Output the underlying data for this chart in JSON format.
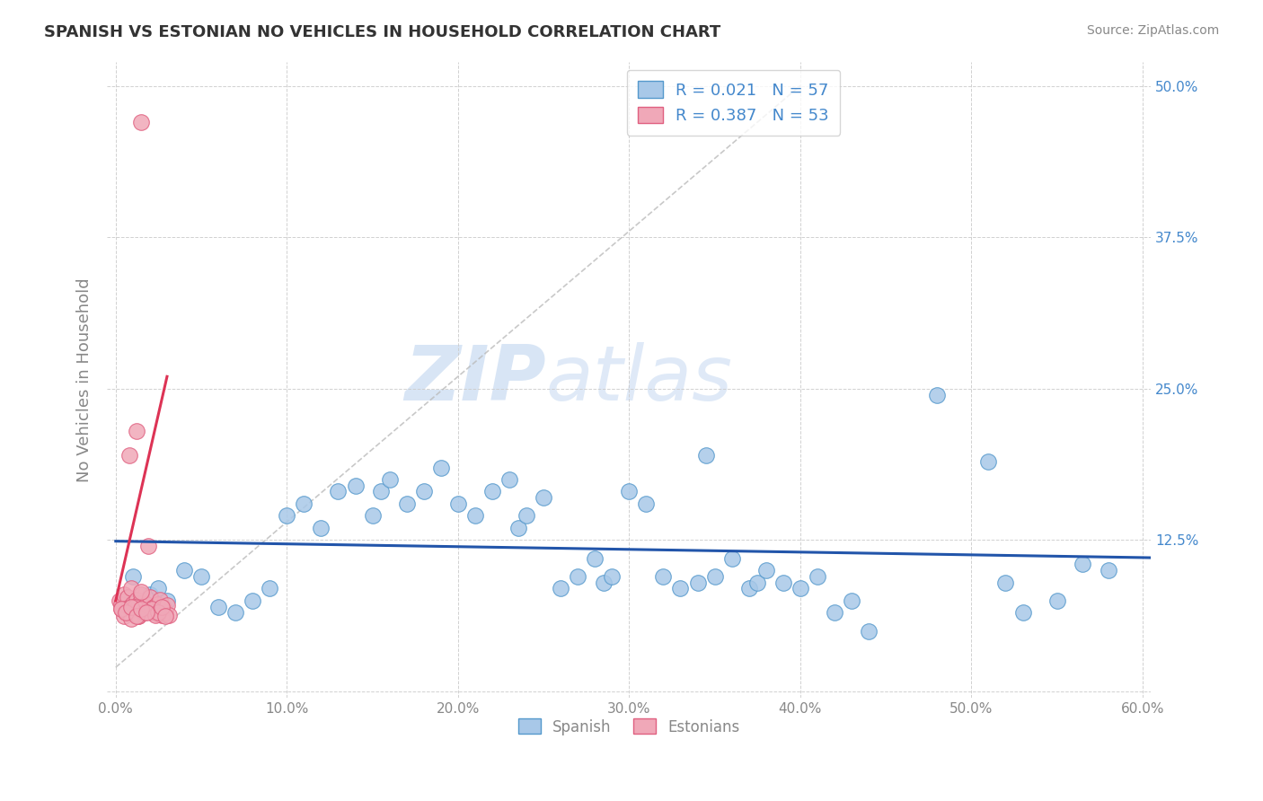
{
  "title": "SPANISH VS ESTONIAN NO VEHICLES IN HOUSEHOLD CORRELATION CHART",
  "source": "Source: ZipAtlas.com",
  "ylabel": "No Vehicles in Household",
  "xlim": [
    -0.005,
    0.605
  ],
  "ylim": [
    -0.005,
    0.52
  ],
  "xticks": [
    0.0,
    0.1,
    0.2,
    0.3,
    0.4,
    0.5,
    0.6
  ],
  "xticklabels": [
    "0.0%",
    "10.0%",
    "20.0%",
    "30.0%",
    "40.0%",
    "50.0%",
    "60.0%"
  ],
  "yticks": [
    0.0,
    0.125,
    0.25,
    0.375,
    0.5
  ],
  "yticklabels_right": [
    "",
    "12.5%",
    "25.0%",
    "37.5%",
    "50.0%"
  ],
  "blue_color": "#a8c8e8",
  "blue_edge": "#5599cc",
  "pink_color": "#f0a8b8",
  "pink_edge": "#e06080",
  "blue_line_color": "#2255aa",
  "pink_line_color": "#dd3355",
  "dashed_line_color": "#cccccc",
  "R_blue": 0.021,
  "N_blue": 57,
  "R_pink": 0.387,
  "N_pink": 53,
  "watermark_zip": "ZIP",
  "watermark_atlas": "atlas",
  "background_color": "#ffffff",
  "legend_labels": [
    "Spanish",
    "Estonians"
  ],
  "tick_label_color": "#4488cc",
  "spanish_x": [
    0.01,
    0.02,
    0.025,
    0.03,
    0.04,
    0.05,
    0.06,
    0.07,
    0.08,
    0.09,
    0.1,
    0.11,
    0.12,
    0.13,
    0.14,
    0.15,
    0.155,
    0.16,
    0.17,
    0.18,
    0.19,
    0.2,
    0.21,
    0.22,
    0.23,
    0.235,
    0.24,
    0.25,
    0.26,
    0.27,
    0.28,
    0.285,
    0.29,
    0.3,
    0.31,
    0.32,
    0.33,
    0.34,
    0.345,
    0.35,
    0.36,
    0.37,
    0.375,
    0.38,
    0.39,
    0.4,
    0.41,
    0.42,
    0.43,
    0.44,
    0.48,
    0.51,
    0.52,
    0.53,
    0.55,
    0.565,
    0.58
  ],
  "spanish_y": [
    0.095,
    0.08,
    0.085,
    0.075,
    0.1,
    0.095,
    0.07,
    0.065,
    0.075,
    0.085,
    0.145,
    0.155,
    0.135,
    0.165,
    0.17,
    0.145,
    0.165,
    0.175,
    0.155,
    0.165,
    0.185,
    0.155,
    0.145,
    0.165,
    0.175,
    0.135,
    0.145,
    0.16,
    0.085,
    0.095,
    0.11,
    0.09,
    0.095,
    0.165,
    0.155,
    0.095,
    0.085,
    0.09,
    0.195,
    0.095,
    0.11,
    0.085,
    0.09,
    0.1,
    0.09,
    0.085,
    0.095,
    0.065,
    0.075,
    0.05,
    0.245,
    0.19,
    0.09,
    0.065,
    0.075,
    0.105,
    0.1
  ],
  "estonian_x": [
    0.002,
    0.003,
    0.004,
    0.005,
    0.006,
    0.007,
    0.008,
    0.009,
    0.01,
    0.011,
    0.012,
    0.013,
    0.014,
    0.015,
    0.016,
    0.017,
    0.018,
    0.019,
    0.02,
    0.021,
    0.022,
    0.023,
    0.024,
    0.025,
    0.026,
    0.027,
    0.028,
    0.029,
    0.03,
    0.031,
    0.003,
    0.005,
    0.007,
    0.009,
    0.011,
    0.013,
    0.015,
    0.017,
    0.019,
    0.021,
    0.023,
    0.025,
    0.027,
    0.029,
    0.003,
    0.006,
    0.009,
    0.012,
    0.015,
    0.018,
    0.008,
    0.012,
    0.015
  ],
  "estonian_y": [
    0.075,
    0.072,
    0.068,
    0.08,
    0.065,
    0.078,
    0.07,
    0.085,
    0.073,
    0.068,
    0.076,
    0.062,
    0.073,
    0.08,
    0.065,
    0.07,
    0.072,
    0.068,
    0.078,
    0.065,
    0.07,
    0.066,
    0.072,
    0.064,
    0.076,
    0.063,
    0.069,
    0.065,
    0.071,
    0.063,
    0.068,
    0.062,
    0.065,
    0.06,
    0.07,
    0.062,
    0.082,
    0.065,
    0.12,
    0.068,
    0.063,
    0.065,
    0.07,
    0.062,
    0.068,
    0.065,
    0.07,
    0.062,
    0.068,
    0.065,
    0.195,
    0.215,
    0.47
  ]
}
